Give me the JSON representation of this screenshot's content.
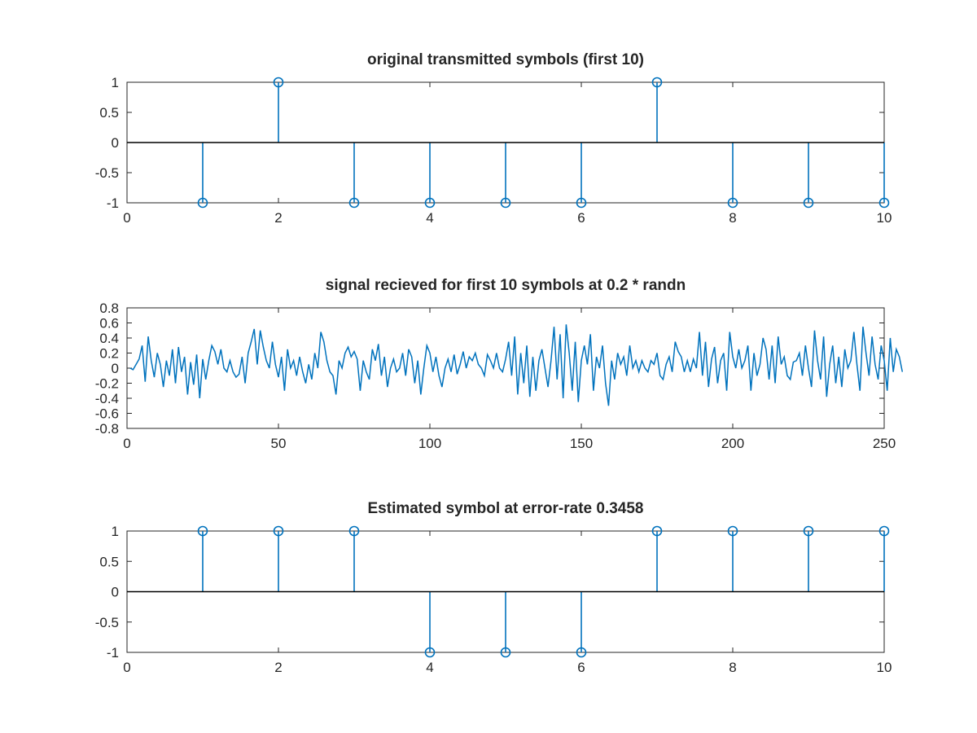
{
  "chart_data": [
    {
      "type": "stem",
      "title": "original transmitted symbols (first 10)",
      "xlim": [
        0,
        10
      ],
      "ylim": [
        -1,
        1
      ],
      "xticks": [
        0,
        2,
        4,
        6,
        8,
        10
      ],
      "xtick_labels": [
        "0",
        "2",
        "4",
        "6",
        "8",
        "10"
      ],
      "yticks": [
        -1,
        -0.5,
        0,
        0.5,
        1
      ],
      "ytick_labels": [
        "-1",
        "-0.5",
        "0",
        "0.5",
        "1"
      ],
      "x": [
        1,
        2,
        3,
        4,
        5,
        6,
        7,
        8,
        9,
        10
      ],
      "values": [
        -1,
        1,
        -1,
        -1,
        -1,
        -1,
        1,
        -1,
        -1,
        -1
      ],
      "color": "#0072bd"
    },
    {
      "type": "line",
      "title": "signal recieved for first 10 symbols at 0.2 * randn",
      "xlim": [
        0,
        250
      ],
      "ylim": [
        -0.8,
        0.8
      ],
      "xticks": [
        0,
        50,
        100,
        150,
        200,
        250
      ],
      "xtick_labels": [
        "0",
        "50",
        "100",
        "150",
        "200",
        "250"
      ],
      "yticks": [
        -0.8,
        -0.6,
        -0.4,
        -0.2,
        0,
        0.2,
        0.4,
        0.6,
        0.8
      ],
      "ytick_labels": [
        "-0.8",
        "-0.6",
        "-0.4",
        "-0.2",
        "0",
        "0.2",
        "0.4",
        "0.6",
        "0.8"
      ],
      "x_start": 1,
      "x_step": 1,
      "values": [
        0.0,
        -0.02,
        0.05,
        0.12,
        0.3,
        -0.18,
        0.42,
        0.1,
        -0.12,
        0.2,
        0.05,
        -0.25,
        0.1,
        -0.1,
        0.25,
        -0.2,
        0.28,
        -0.05,
        0.15,
        -0.35,
        0.08,
        -0.22,
        0.18,
        -0.4,
        0.12,
        -0.15,
        0.1,
        0.3,
        0.22,
        0.05,
        0.25,
        0.0,
        -0.05,
        0.1,
        -0.05,
        -0.12,
        -0.08,
        0.15,
        -0.2,
        0.2,
        0.35,
        0.52,
        0.05,
        0.5,
        0.28,
        0.1,
        0.0,
        0.35,
        0.05,
        -0.12,
        0.15,
        -0.3,
        0.25,
        0.0,
        0.1,
        -0.1,
        0.15,
        -0.05,
        -0.2,
        0.05,
        -0.15,
        0.2,
        0.0,
        0.48,
        0.35,
        0.1,
        -0.05,
        -0.1,
        -0.35,
        0.1,
        0.0,
        0.2,
        0.28,
        0.15,
        0.22,
        0.12,
        -0.3,
        0.1,
        -0.05,
        -0.15,
        0.25,
        0.1,
        0.32,
        -0.1,
        0.15,
        -0.25,
        0.0,
        0.12,
        -0.05,
        0.0,
        0.2,
        -0.1,
        0.25,
        0.15,
        -0.2,
        0.1,
        -0.35,
        0.0,
        0.3,
        0.2,
        -0.05,
        0.15,
        -0.1,
        -0.25,
        0.0,
        0.12,
        -0.05,
        0.18,
        -0.08,
        0.05,
        0.22,
        0.0,
        0.15,
        0.1,
        0.2,
        0.05,
        0.0,
        -0.1,
        0.18,
        0.1,
        0.0,
        0.2,
        0.0,
        -0.05,
        0.12,
        0.35,
        -0.1,
        0.42,
        -0.35,
        0.2,
        -0.2,
        0.3,
        -0.38,
        0.15,
        -0.3,
        0.1,
        0.25,
        0.0,
        -0.25,
        0.1,
        0.55,
        -0.15,
        0.45,
        -0.4,
        0.58,
        0.2,
        -0.3,
        0.35,
        -0.45,
        0.1,
        0.3,
        0.05,
        0.45,
        -0.3,
        0.15,
        0.0,
        0.3,
        -0.2,
        -0.5,
        0.1,
        -0.15,
        0.2,
        0.05,
        0.15,
        -0.1,
        0.3,
        0.0,
        0.1,
        -0.05,
        0.1,
        0.0,
        -0.05,
        0.1,
        0.05,
        0.2,
        -0.1,
        -0.15,
        0.05,
        0.15,
        -0.05,
        0.35,
        0.22,
        0.15,
        -0.05,
        0.1,
        -0.05,
        0.12,
        0.0,
        0.48,
        -0.1,
        0.35,
        -0.25,
        0.12,
        0.28,
        -0.2,
        0.1,
        0.2,
        -0.3,
        0.48,
        0.15,
        0.0,
        0.25,
        0.0,
        0.1,
        0.3,
        -0.3,
        0.2,
        -0.1,
        0.05,
        0.4,
        0.25,
        -0.15,
        0.3,
        -0.2,
        0.42,
        0.05,
        0.15,
        -0.1,
        -0.15,
        0.08,
        0.1,
        0.2,
        -0.1,
        0.3,
        0.0,
        -0.25,
        0.5,
        0.1,
        -0.15,
        0.42,
        -0.38,
        0.05,
        0.3,
        -0.2,
        0.15,
        -0.25,
        0.25,
        0.0,
        0.1,
        0.48,
        0.05,
        -0.3,
        0.55,
        0.2,
        -0.1,
        0.42,
        0.05,
        -0.15,
        0.3,
        0.1,
        -0.3,
        0.4,
        -0.05,
        0.25,
        0.15,
        -0.05
      ],
      "color": "#0072bd"
    },
    {
      "type": "stem",
      "title": "Estimated symbol at error-rate 0.3458",
      "xlim": [
        0,
        10
      ],
      "ylim": [
        -1,
        1
      ],
      "xticks": [
        0,
        2,
        4,
        6,
        8,
        10
      ],
      "xtick_labels": [
        "0",
        "2",
        "4",
        "6",
        "8",
        "10"
      ],
      "yticks": [
        -1,
        -0.5,
        0,
        0.5,
        1
      ],
      "ytick_labels": [
        "-1",
        "-0.5",
        "0",
        "0.5",
        "1"
      ],
      "x": [
        1,
        2,
        3,
        4,
        5,
        6,
        7,
        8,
        9,
        10
      ],
      "values": [
        1,
        1,
        1,
        -1,
        -1,
        -1,
        1,
        1,
        1,
        1
      ],
      "color": "#0072bd"
    }
  ]
}
